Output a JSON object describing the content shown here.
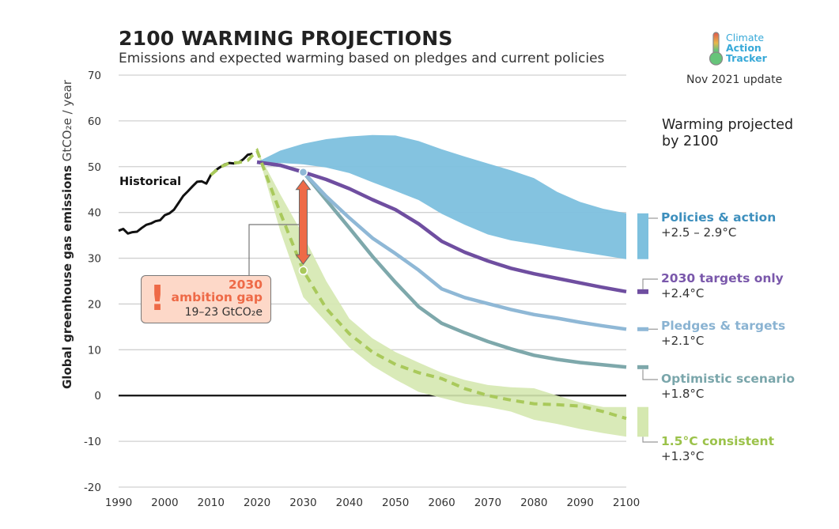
{
  "header": {
    "title": "2100 WARMING PROJECTIONS",
    "subtitle": "Emissions and expected warming based on pledges and current policies"
  },
  "logo": {
    "icon": "thermometer-icon",
    "words": [
      "Climate",
      "Action",
      "Tracker"
    ],
    "update": "Nov 2021 update"
  },
  "warming_heading": "Warming projected by 2100",
  "warming_heading_lines": [
    "Warming projected",
    "by 2100"
  ],
  "ambition_gap": {
    "icon": "exclamation-icon",
    "line1": "2030",
    "line2": "ambition gap",
    "line3": "19–23  GtCO₂e",
    "color": "#ee6a47"
  },
  "chart_data": {
    "type": "line",
    "title": "2100 WARMING PROJECTIONS",
    "subtitle": "Emissions and expected warming based on pledges and current policies",
    "xlabel": "",
    "ylabel": "Global greenhouse gas emissions",
    "ylabel_bold": "Global greenhouse gas emissions",
    "ylabel_unit": "GtCO₂e / year",
    "xlim": [
      1990,
      2100
    ],
    "ylim": [
      -20,
      70
    ],
    "xticks": [
      1990,
      2000,
      2010,
      2020,
      2030,
      2040,
      2050,
      2060,
      2070,
      2080,
      2090,
      2100
    ],
    "yticks": [
      -20,
      -10,
      0,
      10,
      20,
      30,
      40,
      50,
      60,
      70
    ],
    "grid": true,
    "legend_placement": "right",
    "historical": {
      "name": "Historical",
      "color": "#111111",
      "x": [
        1990,
        1991,
        1992,
        1993,
        1994,
        1995,
        1996,
        1997,
        1998,
        1999,
        2000,
        2001,
        2002,
        2003,
        2004,
        2005,
        2006,
        2007,
        2008,
        2009,
        2010,
        2011,
        2012,
        2013,
        2014,
        2015,
        2016,
        2017,
        2018,
        2019
      ],
      "y": [
        36.0,
        36.4,
        35.4,
        35.7,
        35.8,
        36.6,
        37.3,
        37.6,
        38.1,
        38.3,
        39.4,
        39.8,
        40.6,
        42.1,
        43.6,
        44.6,
        45.7,
        46.7,
        46.8,
        46.3,
        48.2,
        49.2,
        49.9,
        50.5,
        50.8,
        50.7,
        50.9,
        51.6,
        52.6,
        52.8
      ]
    },
    "series": [
      {
        "name": "Policies & action",
        "warming": "+2.5 – 2.9°C",
        "type": "band",
        "color": "#7dc0de",
        "label_color": "#3d8fbd",
        "x": [
          2020,
          2025,
          2030,
          2035,
          2040,
          2045,
          2050,
          2055,
          2060,
          2065,
          2070,
          2075,
          2080,
          2085,
          2090,
          2095,
          2100
        ],
        "upper": [
          51,
          53.5,
          55,
          56,
          56.6,
          56.9,
          56.8,
          55.6,
          53.8,
          52.2,
          50.7,
          49.2,
          47.5,
          44.5,
          42.3,
          40.8,
          39.8
        ],
        "lower": [
          51,
          50.8,
          50.5,
          49.8,
          48.6,
          46.6,
          44.7,
          42.7,
          39.7,
          37.3,
          35.2,
          33.9,
          33.1,
          32.2,
          31.4,
          30.6,
          29.8
        ]
      },
      {
        "name": "2030 targets only",
        "warming": "+2.4°C",
        "type": "line",
        "color": "#6f4ea0",
        "label_color": "#7a58ab",
        "x": [
          2020,
          2025,
          2030,
          2035,
          2040,
          2045,
          2050,
          2055,
          2060,
          2065,
          2070,
          2075,
          2080,
          2085,
          2090,
          2095,
          2100
        ],
        "y": [
          51,
          50.3,
          48.8,
          47.2,
          45.2,
          42.8,
          40.6,
          37.5,
          33.7,
          31.3,
          29.4,
          27.8,
          26.6,
          25.6,
          24.6,
          23.6,
          22.7
        ]
      },
      {
        "name": "Pledges & targets",
        "warming": "+2.1°C",
        "type": "line",
        "color": "#8fb8d6",
        "label_color": "#8ab3d2",
        "x": [
          2020,
          2025,
          2030,
          2035,
          2040,
          2045,
          2050,
          2055,
          2060,
          2065,
          2070,
          2075,
          2080,
          2085,
          2090,
          2095,
          2100
        ],
        "y": [
          51,
          50.3,
          48.8,
          43.5,
          38.8,
          34.4,
          31.0,
          27.4,
          23.3,
          21.4,
          20.1,
          18.8,
          17.7,
          16.9,
          16.0,
          15.2,
          14.5
        ]
      },
      {
        "name": "Optimistic scenario",
        "warming": "+1.8°C",
        "type": "line",
        "color": "#7ea8ab",
        "label_color": "#7aa6ab",
        "x": [
          2020,
          2025,
          2030,
          2035,
          2040,
          2045,
          2050,
          2055,
          2060,
          2065,
          2070,
          2075,
          2080,
          2085,
          2090,
          2095,
          2100
        ],
        "y": [
          51,
          50.3,
          48.8,
          42.7,
          36.6,
          30.4,
          24.7,
          19.4,
          15.8,
          13.7,
          11.8,
          10.2,
          8.8,
          7.9,
          7.2,
          6.7,
          6.2
        ]
      },
      {
        "name": "1.5°C consistent",
        "warming": "+1.3°C",
        "type": "band+dashed",
        "color": "#a9c95b",
        "band_color": "#d5e8b0",
        "label_color": "#9bc24a",
        "x": [
          2018,
          2020,
          2025,
          2030,
          2035,
          2040,
          2045,
          2050,
          2055,
          2060,
          2065,
          2070,
          2075,
          2080,
          2085,
          2090,
          2095,
          2100
        ],
        "y": [
          51,
          53.5,
          40,
          27.3,
          19,
          13.5,
          9.5,
          6.8,
          5,
          3.7,
          1.5,
          0,
          -1,
          -1.8,
          -2,
          -2.3,
          -3.5,
          -5
        ],
        "upper": [
          51,
          53.5,
          44,
          35,
          25,
          16.8,
          12.5,
          9.5,
          7.2,
          5,
          3.4,
          2.3,
          1.8,
          1.6,
          0,
          -1.5,
          -2.5,
          -2.5
        ],
        "lower": [
          51,
          53.5,
          36,
          21.5,
          16,
          10.5,
          6.5,
          3.5,
          0.8,
          -0.5,
          -1.8,
          -2.5,
          -3.5,
          -5.3,
          -6.2,
          -7.3,
          -8.2,
          -9
        ]
      }
    ],
    "annotations": [
      {
        "text": "Historical",
        "x": 1997,
        "y": 46.5
      },
      {
        "text": "2030 ambition gap 19–23 GtCO₂e",
        "from": [
          2030,
          48.8
        ],
        "to": [
          2030,
          27.3
        ]
      }
    ],
    "end_markers_2100": [
      {
        "series": "Policies & action",
        "range": [
          29.8,
          39.8
        ]
      },
      {
        "series": "2030 targets only",
        "value": 22.7
      },
      {
        "series": "Pledges & targets",
        "value": 14.5
      },
      {
        "series": "Optimistic scenario",
        "value": 6.2
      },
      {
        "series": "1.5°C consistent",
        "range": [
          -9,
          -2.5
        ]
      }
    ]
  }
}
